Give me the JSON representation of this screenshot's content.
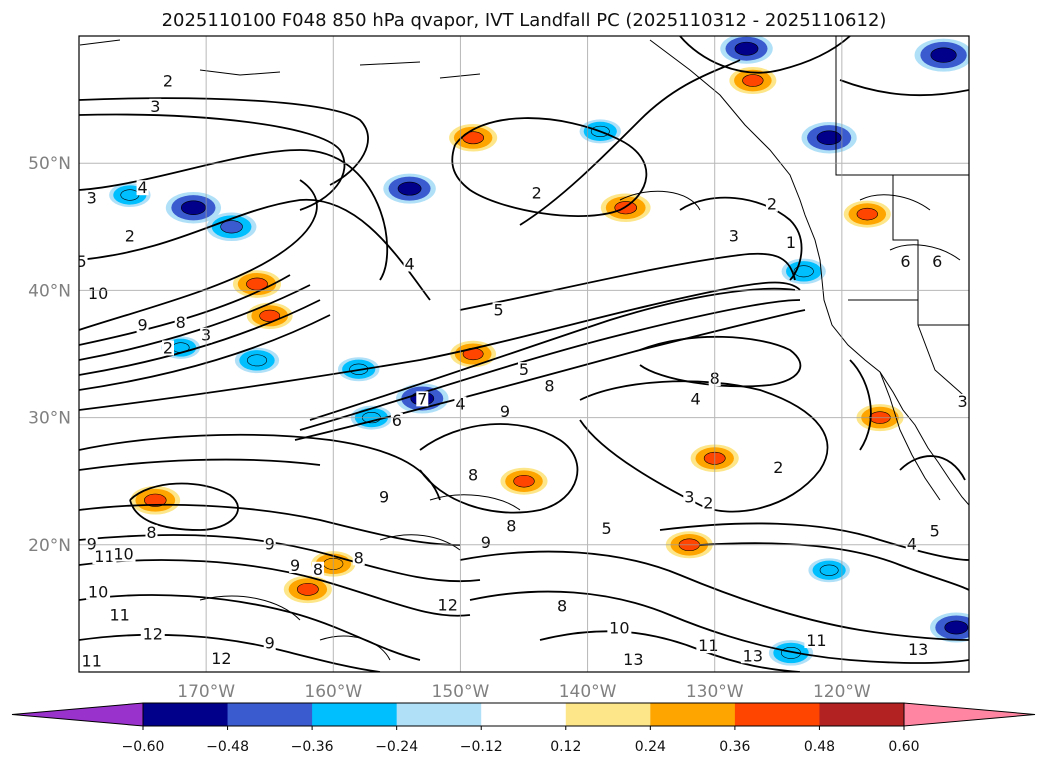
{
  "chart_data": {
    "type": "heatmap",
    "title": "2025110100 F048 850 hPa qvapor, IVT Landfall PC (2025110312 - 2025110612)",
    "map": {
      "projection": "PlateCarree",
      "lon_range": [
        -180,
        -110
      ],
      "lat_range": [
        10,
        60
      ],
      "grid": true,
      "x_ticks": [
        {
          "lon": -170,
          "label": "170°W"
        },
        {
          "lon": -160,
          "label": "160°W"
        },
        {
          "lon": -150,
          "label": "150°W"
        },
        {
          "lon": -140,
          "label": "140°W"
        },
        {
          "lon": -130,
          "label": "130°W"
        },
        {
          "lon": -120,
          "label": "120°W"
        }
      ],
      "y_ticks": [
        {
          "lat": 20,
          "label": "20°N"
        },
        {
          "lat": 30,
          "label": "30°N"
        },
        {
          "lat": 40,
          "label": "40°N"
        },
        {
          "lat": 50,
          "label": "50°N"
        }
      ]
    },
    "colorbar": {
      "orientation": "horizontal",
      "extend": "both",
      "levels": [
        -0.72,
        -0.6,
        -0.48,
        -0.36,
        -0.24,
        -0.12,
        0.12,
        0.24,
        0.36,
        0.48,
        0.6,
        0.72
      ],
      "colors": [
        "#9932cc",
        "#00008b",
        "#3a5bcf",
        "#00bfff",
        "#b0e0f8",
        "#ffffff",
        "#fde68a",
        "#ffa500",
        "#ff4500",
        "#b22222",
        "#ff85a2"
      ],
      "tick_labels": [
        "−0.60",
        "−0.48",
        "−0.36",
        "−0.24",
        "−0.12",
        "0.12",
        "0.24",
        "0.36",
        "0.48",
        "0.60"
      ]
    },
    "shaded_features": [
      {
        "lon": -171,
        "lat": 46.5,
        "value": -0.55
      },
      {
        "lon": -168,
        "lat": 45.0,
        "value": -0.45
      },
      {
        "lon": -176,
        "lat": 47.5,
        "value": -0.3
      },
      {
        "lon": -166,
        "lat": 40.5,
        "value": 0.42
      },
      {
        "lon": -165,
        "lat": 38.0,
        "value": 0.38
      },
      {
        "lon": -172,
        "lat": 35.5,
        "value": -0.25
      },
      {
        "lon": -166,
        "lat": 34.5,
        "value": -0.35
      },
      {
        "lon": -158,
        "lat": 33.8,
        "value": -0.3
      },
      {
        "lon": -153,
        "lat": 31.5,
        "value": -0.5
      },
      {
        "lon": -157,
        "lat": 30.0,
        "value": -0.3
      },
      {
        "lon": -154,
        "lat": 48.0,
        "value": -0.5
      },
      {
        "lon": -149,
        "lat": 52.0,
        "value": 0.42
      },
      {
        "lon": -139,
        "lat": 52.5,
        "value": -0.3
      },
      {
        "lon": -137,
        "lat": 46.5,
        "value": 0.45
      },
      {
        "lon": -127,
        "lat": 56.5,
        "value": 0.4
      },
      {
        "lon": -121,
        "lat": 52.0,
        "value": -0.55
      },
      {
        "lon": -112,
        "lat": 58.5,
        "value": -0.6
      },
      {
        "lon": -127.5,
        "lat": 59.0,
        "value": -0.5
      },
      {
        "lon": -123,
        "lat": 41.5,
        "value": -0.35
      },
      {
        "lon": -118,
        "lat": 46.0,
        "value": 0.4
      },
      {
        "lon": -130,
        "lat": 26.8,
        "value": 0.42
      },
      {
        "lon": -145,
        "lat": 25.0,
        "value": 0.4
      },
      {
        "lon": -149,
        "lat": 35.0,
        "value": 0.38
      },
      {
        "lon": -174,
        "lat": 23.5,
        "value": 0.45
      },
      {
        "lon": -162,
        "lat": 16.5,
        "value": 0.42
      },
      {
        "lon": -160,
        "lat": 18.5,
        "value": 0.35
      },
      {
        "lon": -132,
        "lat": 20.0,
        "value": 0.4
      },
      {
        "lon": -121,
        "lat": 18.0,
        "value": -0.3
      },
      {
        "lon": -111,
        "lat": 13.5,
        "value": -0.5
      },
      {
        "lon": -124,
        "lat": 11.5,
        "value": -0.35
      },
      {
        "lon": -117,
        "lat": 30.0,
        "value": 0.4
      }
    ],
    "contour_labels": [
      {
        "lon": -173,
        "lat": 56.2,
        "text": "2"
      },
      {
        "lon": -174,
        "lat": 54.2,
        "text": "3"
      },
      {
        "lon": -179,
        "lat": 47.0,
        "text": "3"
      },
      {
        "lon": -175,
        "lat": 47.8,
        "text": "4"
      },
      {
        "lon": -176,
        "lat": 44.0,
        "text": "2"
      },
      {
        "lon": -179.8,
        "lat": 42.0,
        "text": "5"
      },
      {
        "lon": -178.5,
        "lat": 39.5,
        "text": "10"
      },
      {
        "lon": -175,
        "lat": 37.0,
        "text": "9"
      },
      {
        "lon": -172,
        "lat": 37.2,
        "text": "8"
      },
      {
        "lon": -173,
        "lat": 35.2,
        "text": "2"
      },
      {
        "lon": -170,
        "lat": 36.2,
        "text": "3"
      },
      {
        "lon": -154,
        "lat": 41.8,
        "text": "4"
      },
      {
        "lon": -147,
        "lat": 38.2,
        "text": "5"
      },
      {
        "lon": -145,
        "lat": 33.5,
        "text": "5"
      },
      {
        "lon": -143,
        "lat": 32.2,
        "text": "8"
      },
      {
        "lon": -146.5,
        "lat": 30.2,
        "text": "9"
      },
      {
        "lon": -153,
        "lat": 31.2,
        "text": "7"
      },
      {
        "lon": -155,
        "lat": 29.5,
        "text": "6"
      },
      {
        "lon": -150,
        "lat": 30.8,
        "text": "4"
      },
      {
        "lon": -144,
        "lat": 47.4,
        "text": "2"
      },
      {
        "lon": -125.5,
        "lat": 46.5,
        "text": "2"
      },
      {
        "lon": -128.5,
        "lat": 44.0,
        "text": "3"
      },
      {
        "lon": -124,
        "lat": 43.5,
        "text": "1"
      },
      {
        "lon": -130,
        "lat": 32.8,
        "text": "8"
      },
      {
        "lon": -131.5,
        "lat": 31.2,
        "text": "4"
      },
      {
        "lon": -125,
        "lat": 25.8,
        "text": "2"
      },
      {
        "lon": -112.5,
        "lat": 42.0,
        "text": "6"
      },
      {
        "lon": -115,
        "lat": 42.0,
        "text": "6"
      },
      {
        "lon": -110.5,
        "lat": 31.0,
        "text": "3"
      },
      {
        "lon": -112.7,
        "lat": 20.8,
        "text": "5"
      },
      {
        "lon": -114.5,
        "lat": 19.8,
        "text": "4"
      },
      {
        "lon": -174.3,
        "lat": 20.7,
        "text": "8"
      },
      {
        "lon": -149,
        "lat": 25.2,
        "text": "8"
      },
      {
        "lon": -146,
        "lat": 21.2,
        "text": "8"
      },
      {
        "lon": -148,
        "lat": 19.9,
        "text": "9"
      },
      {
        "lon": -156,
        "lat": 23.5,
        "text": "9"
      },
      {
        "lon": -165,
        "lat": 19.8,
        "text": "9"
      },
      {
        "lon": -163,
        "lat": 18.1,
        "text": "9"
      },
      {
        "lon": -161.2,
        "lat": 17.8,
        "text": "8"
      },
      {
        "lon": -158,
        "lat": 18.7,
        "text": "8"
      },
      {
        "lon": -179,
        "lat": 19.8,
        "text": "9"
      },
      {
        "lon": -178,
        "lat": 18.8,
        "text": "11"
      },
      {
        "lon": -176.5,
        "lat": 19.0,
        "text": "10"
      },
      {
        "lon": -178.5,
        "lat": 16.0,
        "text": "10"
      },
      {
        "lon": -176.8,
        "lat": 14.2,
        "text": "11"
      },
      {
        "lon": -174.2,
        "lat": 12.7,
        "text": "12"
      },
      {
        "lon": -179,
        "lat": 10.6,
        "text": "11"
      },
      {
        "lon": -168.8,
        "lat": 10.8,
        "text": "12"
      },
      {
        "lon": -165,
        "lat": 12.0,
        "text": "9"
      },
      {
        "lon": -151,
        "lat": 15.0,
        "text": "12"
      },
      {
        "lon": -137.5,
        "lat": 13.2,
        "text": "10"
      },
      {
        "lon": -136.4,
        "lat": 10.7,
        "text": "13"
      },
      {
        "lon": -142,
        "lat": 14.9,
        "text": "8"
      },
      {
        "lon": -130.5,
        "lat": 11.8,
        "text": "11"
      },
      {
        "lon": -127,
        "lat": 11.0,
        "text": "13"
      },
      {
        "lon": -122,
        "lat": 12.2,
        "text": "11"
      },
      {
        "lon": -114,
        "lat": 11.5,
        "text": "13"
      },
      {
        "lon": -138.5,
        "lat": 21.0,
        "text": "5"
      },
      {
        "lon": -132,
        "lat": 23.5,
        "text": "3"
      },
      {
        "lon": -130.5,
        "lat": 23.0,
        "text": "2"
      }
    ]
  }
}
